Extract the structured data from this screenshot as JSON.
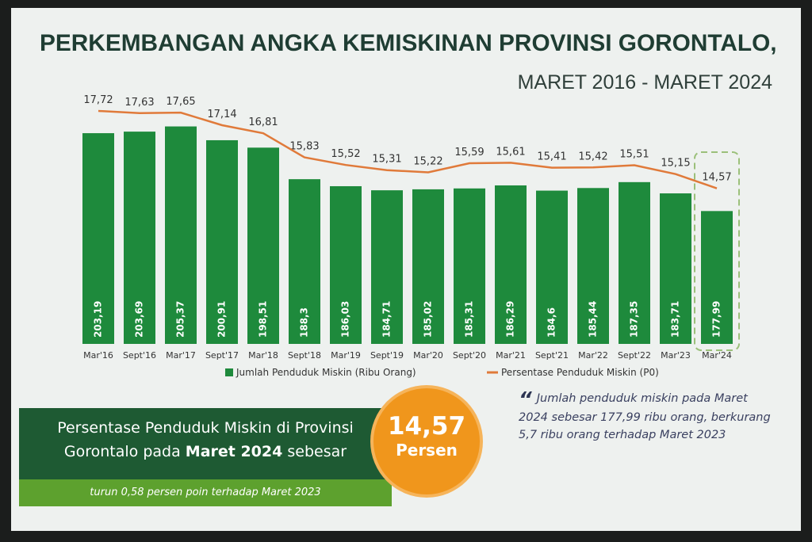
{
  "header": {
    "title": "PERKEMBANGAN ANGKA KEMISKINAN PROVINSI GORONTALO,",
    "subtitle": "MARET 2016 - MARET 2024"
  },
  "chart_data": {
    "type": "bar+line",
    "title": "PERKEMBANGAN ANGKA KEMISKINAN PROVINSI GORONTALO, MARET 2016 - MARET 2024",
    "categories": [
      "Mar'16",
      "Sept'16",
      "Mar'17",
      "Sept'17",
      "Mar'18",
      "Sept'18",
      "Mar'19",
      "Sept'19",
      "Mar'20",
      "Sept'20",
      "Mar'21",
      "Sept'21",
      "Mar'22",
      "Sept'22",
      "Mar'23",
      "Mar'24"
    ],
    "series": [
      {
        "name": "Jumlah Penduduk Miskin (Ribu Orang)",
        "type": "bar",
        "color": "#1e8a3c",
        "values": [
          203.19,
          203.69,
          205.37,
          200.91,
          198.51,
          188.3,
          186.03,
          184.71,
          185.02,
          185.31,
          186.29,
          184.6,
          185.44,
          187.35,
          183.71,
          177.99
        ],
        "labels": [
          "203,19",
          "203,69",
          "205,37",
          "200,91",
          "198,51",
          "188,3",
          "186,03",
          "184,71",
          "185,02",
          "185,31",
          "186,29",
          "184,6",
          "185,44",
          "187,35",
          "183,71",
          "177,99"
        ]
      },
      {
        "name": "Persentase Penduduk Miskin (P0)",
        "type": "line",
        "color": "#e07a3a",
        "values": [
          17.72,
          17.63,
          17.65,
          17.14,
          16.81,
          15.83,
          15.52,
          15.31,
          15.22,
          15.59,
          15.61,
          15.41,
          15.42,
          15.51,
          15.15,
          14.57
        ],
        "labels": [
          "17,72",
          "17,63",
          "17,65",
          "17,14",
          "16,81",
          "15,83",
          "15,52",
          "15,31",
          "15,22",
          "15,59",
          "15,61",
          "15,41",
          "15,42",
          "15,51",
          "15,15",
          "14,57"
        ]
      }
    ],
    "highlight": "Mar'24",
    "legend_placement": "bottom",
    "grid": false
  },
  "summary": {
    "line1": "Persentase Penduduk Miskin di Provinsi",
    "line2a": "Gorontalo pada ",
    "line2b": "Maret 2024",
    "line2c": " sebesar",
    "sub": "turun 0,58 persen poin terhadap Maret 2023",
    "value": "14,57",
    "unit": "Persen"
  },
  "quote": {
    "text": "Jumlah penduduk miskin pada Maret 2024 sebesar 177,99 ribu orang, berkurang 5,7 ribu orang terhadap Maret 2023"
  },
  "colors": {
    "bar": "#1e8a3c",
    "line": "#e07a3a",
    "banner": "#1e5a33",
    "banner_sub": "#5da12e",
    "circle": "#f0961c"
  }
}
